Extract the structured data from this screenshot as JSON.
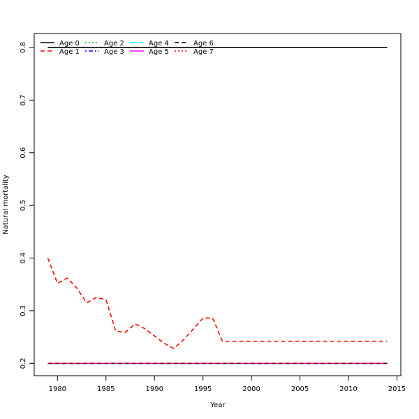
{
  "chart_data": {
    "type": "line",
    "xlabel": "Year",
    "ylabel": "Natural mortality",
    "xlim": [
      1977.6,
      2015.4
    ],
    "ylim": [
      0.1765,
      0.8265
    ],
    "x_ticks": [
      1980,
      1985,
      1990,
      1995,
      2000,
      2005,
      2010,
      2015
    ],
    "y_ticks": [
      0.2,
      0.3,
      0.4,
      0.5,
      0.6,
      0.7,
      0.8
    ],
    "grid": false,
    "legend_position": "top-left",
    "x": [
      1979,
      1980,
      1981,
      1982,
      1983,
      1984,
      1985,
      1986,
      1987,
      1988,
      1989,
      1990,
      1991,
      1992,
      1993,
      1994,
      1995,
      1996,
      1997,
      1998,
      1999,
      2000,
      2001,
      2002,
      2003,
      2004,
      2005,
      2006,
      2007,
      2008,
      2009,
      2010,
      2011,
      2012,
      2013,
      2014
    ],
    "series": [
      {
        "name": "Age 0",
        "color": "#000000",
        "dash": "solid",
        "values": [
          0.8,
          0.8,
          0.8,
          0.8,
          0.8,
          0.8,
          0.8,
          0.8,
          0.8,
          0.8,
          0.8,
          0.8,
          0.8,
          0.8,
          0.8,
          0.8,
          0.8,
          0.8,
          0.8,
          0.8,
          0.8,
          0.8,
          0.8,
          0.8,
          0.8,
          0.8,
          0.8,
          0.8,
          0.8,
          0.8,
          0.8,
          0.8,
          0.8,
          0.8,
          0.8,
          0.8
        ]
      },
      {
        "name": "Age 1",
        "color": "#ff0000",
        "dash": "dashed",
        "values": [
          0.4,
          0.352,
          0.362,
          0.343,
          0.315,
          0.325,
          0.321,
          0.261,
          0.259,
          0.275,
          0.266,
          0.252,
          0.238,
          0.228,
          0.245,
          0.265,
          0.286,
          0.286,
          0.242,
          0.242,
          0.242,
          0.242,
          0.242,
          0.242,
          0.242,
          0.242,
          0.242,
          0.242,
          0.242,
          0.242,
          0.242,
          0.242,
          0.242,
          0.242,
          0.242,
          0.242
        ]
      },
      {
        "name": "Age 2",
        "color": "#00cd00",
        "dash": "dotted",
        "values": [
          0.2,
          0.2,
          0.2,
          0.2,
          0.2,
          0.2,
          0.2,
          0.2,
          0.2,
          0.2,
          0.2,
          0.2,
          0.2,
          0.2,
          0.2,
          0.2,
          0.2,
          0.2,
          0.2,
          0.2,
          0.2,
          0.2,
          0.2,
          0.2,
          0.2,
          0.2,
          0.2,
          0.2,
          0.2,
          0.2,
          0.2,
          0.2,
          0.2,
          0.2,
          0.2,
          0.2
        ]
      },
      {
        "name": "Age 3",
        "color": "#0000ff",
        "dash": "dotdash",
        "values": [
          0.2,
          0.2,
          0.2,
          0.2,
          0.2,
          0.2,
          0.2,
          0.2,
          0.2,
          0.2,
          0.2,
          0.2,
          0.2,
          0.2,
          0.2,
          0.2,
          0.2,
          0.2,
          0.2,
          0.2,
          0.2,
          0.2,
          0.2,
          0.2,
          0.2,
          0.2,
          0.2,
          0.2,
          0.2,
          0.2,
          0.2,
          0.2,
          0.2,
          0.2,
          0.2,
          0.2
        ]
      },
      {
        "name": "Age 4",
        "color": "#00ffff",
        "dash": "longdash",
        "values": [
          0.2,
          0.2,
          0.2,
          0.2,
          0.2,
          0.2,
          0.2,
          0.2,
          0.2,
          0.2,
          0.2,
          0.2,
          0.2,
          0.2,
          0.2,
          0.2,
          0.2,
          0.2,
          0.2,
          0.2,
          0.2,
          0.2,
          0.2,
          0.2,
          0.2,
          0.2,
          0.2,
          0.2,
          0.2,
          0.2,
          0.2,
          0.2,
          0.2,
          0.2,
          0.2,
          0.2
        ]
      },
      {
        "name": "Age 5",
        "color": "#ff00ff",
        "dash": "solid",
        "values": [
          0.2,
          0.2,
          0.2,
          0.2,
          0.2,
          0.2,
          0.2,
          0.2,
          0.2,
          0.2,
          0.2,
          0.2,
          0.2,
          0.2,
          0.2,
          0.2,
          0.2,
          0.2,
          0.2,
          0.2,
          0.2,
          0.2,
          0.2,
          0.2,
          0.2,
          0.2,
          0.2,
          0.2,
          0.2,
          0.2,
          0.2,
          0.2,
          0.2,
          0.2,
          0.2,
          0.2
        ]
      },
      {
        "name": "Age 6",
        "color": "#000000",
        "dash": "dashed",
        "values": [
          0.2,
          0.2,
          0.2,
          0.2,
          0.2,
          0.2,
          0.2,
          0.2,
          0.2,
          0.2,
          0.2,
          0.2,
          0.2,
          0.2,
          0.2,
          0.2,
          0.2,
          0.2,
          0.2,
          0.2,
          0.2,
          0.2,
          0.2,
          0.2,
          0.2,
          0.2,
          0.2,
          0.2,
          0.2,
          0.2,
          0.2,
          0.2,
          0.2,
          0.2,
          0.2,
          0.2
        ]
      },
      {
        "name": "Age 7",
        "color": "#ff0000",
        "dash": "dotted",
        "values": [
          0.2,
          0.2,
          0.2,
          0.2,
          0.2,
          0.2,
          0.2,
          0.2,
          0.2,
          0.2,
          0.2,
          0.2,
          0.2,
          0.2,
          0.2,
          0.2,
          0.2,
          0.2,
          0.2,
          0.2,
          0.2,
          0.2,
          0.2,
          0.2,
          0.2,
          0.2,
          0.2,
          0.2,
          0.2,
          0.2,
          0.2,
          0.2,
          0.2,
          0.2,
          0.2,
          0.2
        ]
      }
    ]
  }
}
